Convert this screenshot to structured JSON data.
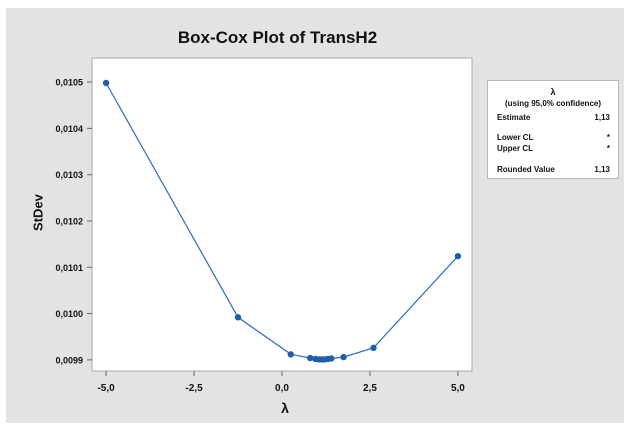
{
  "chart_data": {
    "type": "line",
    "title": "Box-Cox Plot of TransH2",
    "xlabel": "λ",
    "ylabel": "StDev",
    "xlim": [
      -5.4,
      5.4
    ],
    "ylim": [
      0.009876,
      0.010552
    ],
    "x_ticks": [
      -5.0,
      -2.5,
      0.0,
      2.5,
      5.0
    ],
    "x_tick_labels": [
      "-5,0",
      "-2,5",
      "0,0",
      "2,5",
      "5,0"
    ],
    "y_ticks": [
      0.0099,
      0.01,
      0.0101,
      0.0102,
      0.0103,
      0.0104,
      0.0105
    ],
    "y_tick_labels": [
      "0,0099",
      "0,0100",
      "0,0101",
      "0,0102",
      "0,0103",
      "0,0104",
      "0,0105"
    ],
    "grid": false,
    "series": [
      {
        "points": [
          {
            "x": -5.0,
            "y": 0.010498
          },
          {
            "x": -1.25,
            "y": 0.009992
          },
          {
            "x": 0.25,
            "y": 0.009912
          },
          {
            "x": 0.8,
            "y": 0.009904
          },
          {
            "x": 0.95,
            "y": 0.009902
          },
          {
            "x": 1.05,
            "y": 0.009901
          },
          {
            "x": 1.13,
            "y": 0.009901
          },
          {
            "x": 1.2,
            "y": 0.009901
          },
          {
            "x": 1.3,
            "y": 0.009902
          },
          {
            "x": 1.4,
            "y": 0.009903
          },
          {
            "x": 1.75,
            "y": 0.009906
          },
          {
            "x": 2.6,
            "y": 0.009926
          },
          {
            "x": 5.0,
            "y": 0.010124
          }
        ]
      }
    ],
    "colors": {
      "line": "#2a6ebb",
      "marker": "#1f5fa8"
    }
  },
  "legend": {
    "title": "λ",
    "subtitle": "(using 95,0% confidence)",
    "estimate_label": "Estimate",
    "estimate_value": "1,13",
    "lower_cl_label": "Lower CL",
    "lower_cl_value": "*",
    "upper_cl_label": "Upper CL",
    "upper_cl_value": "*",
    "rounded_label": "Rounded Value",
    "rounded_value": "1,13",
    "placement": "right"
  }
}
